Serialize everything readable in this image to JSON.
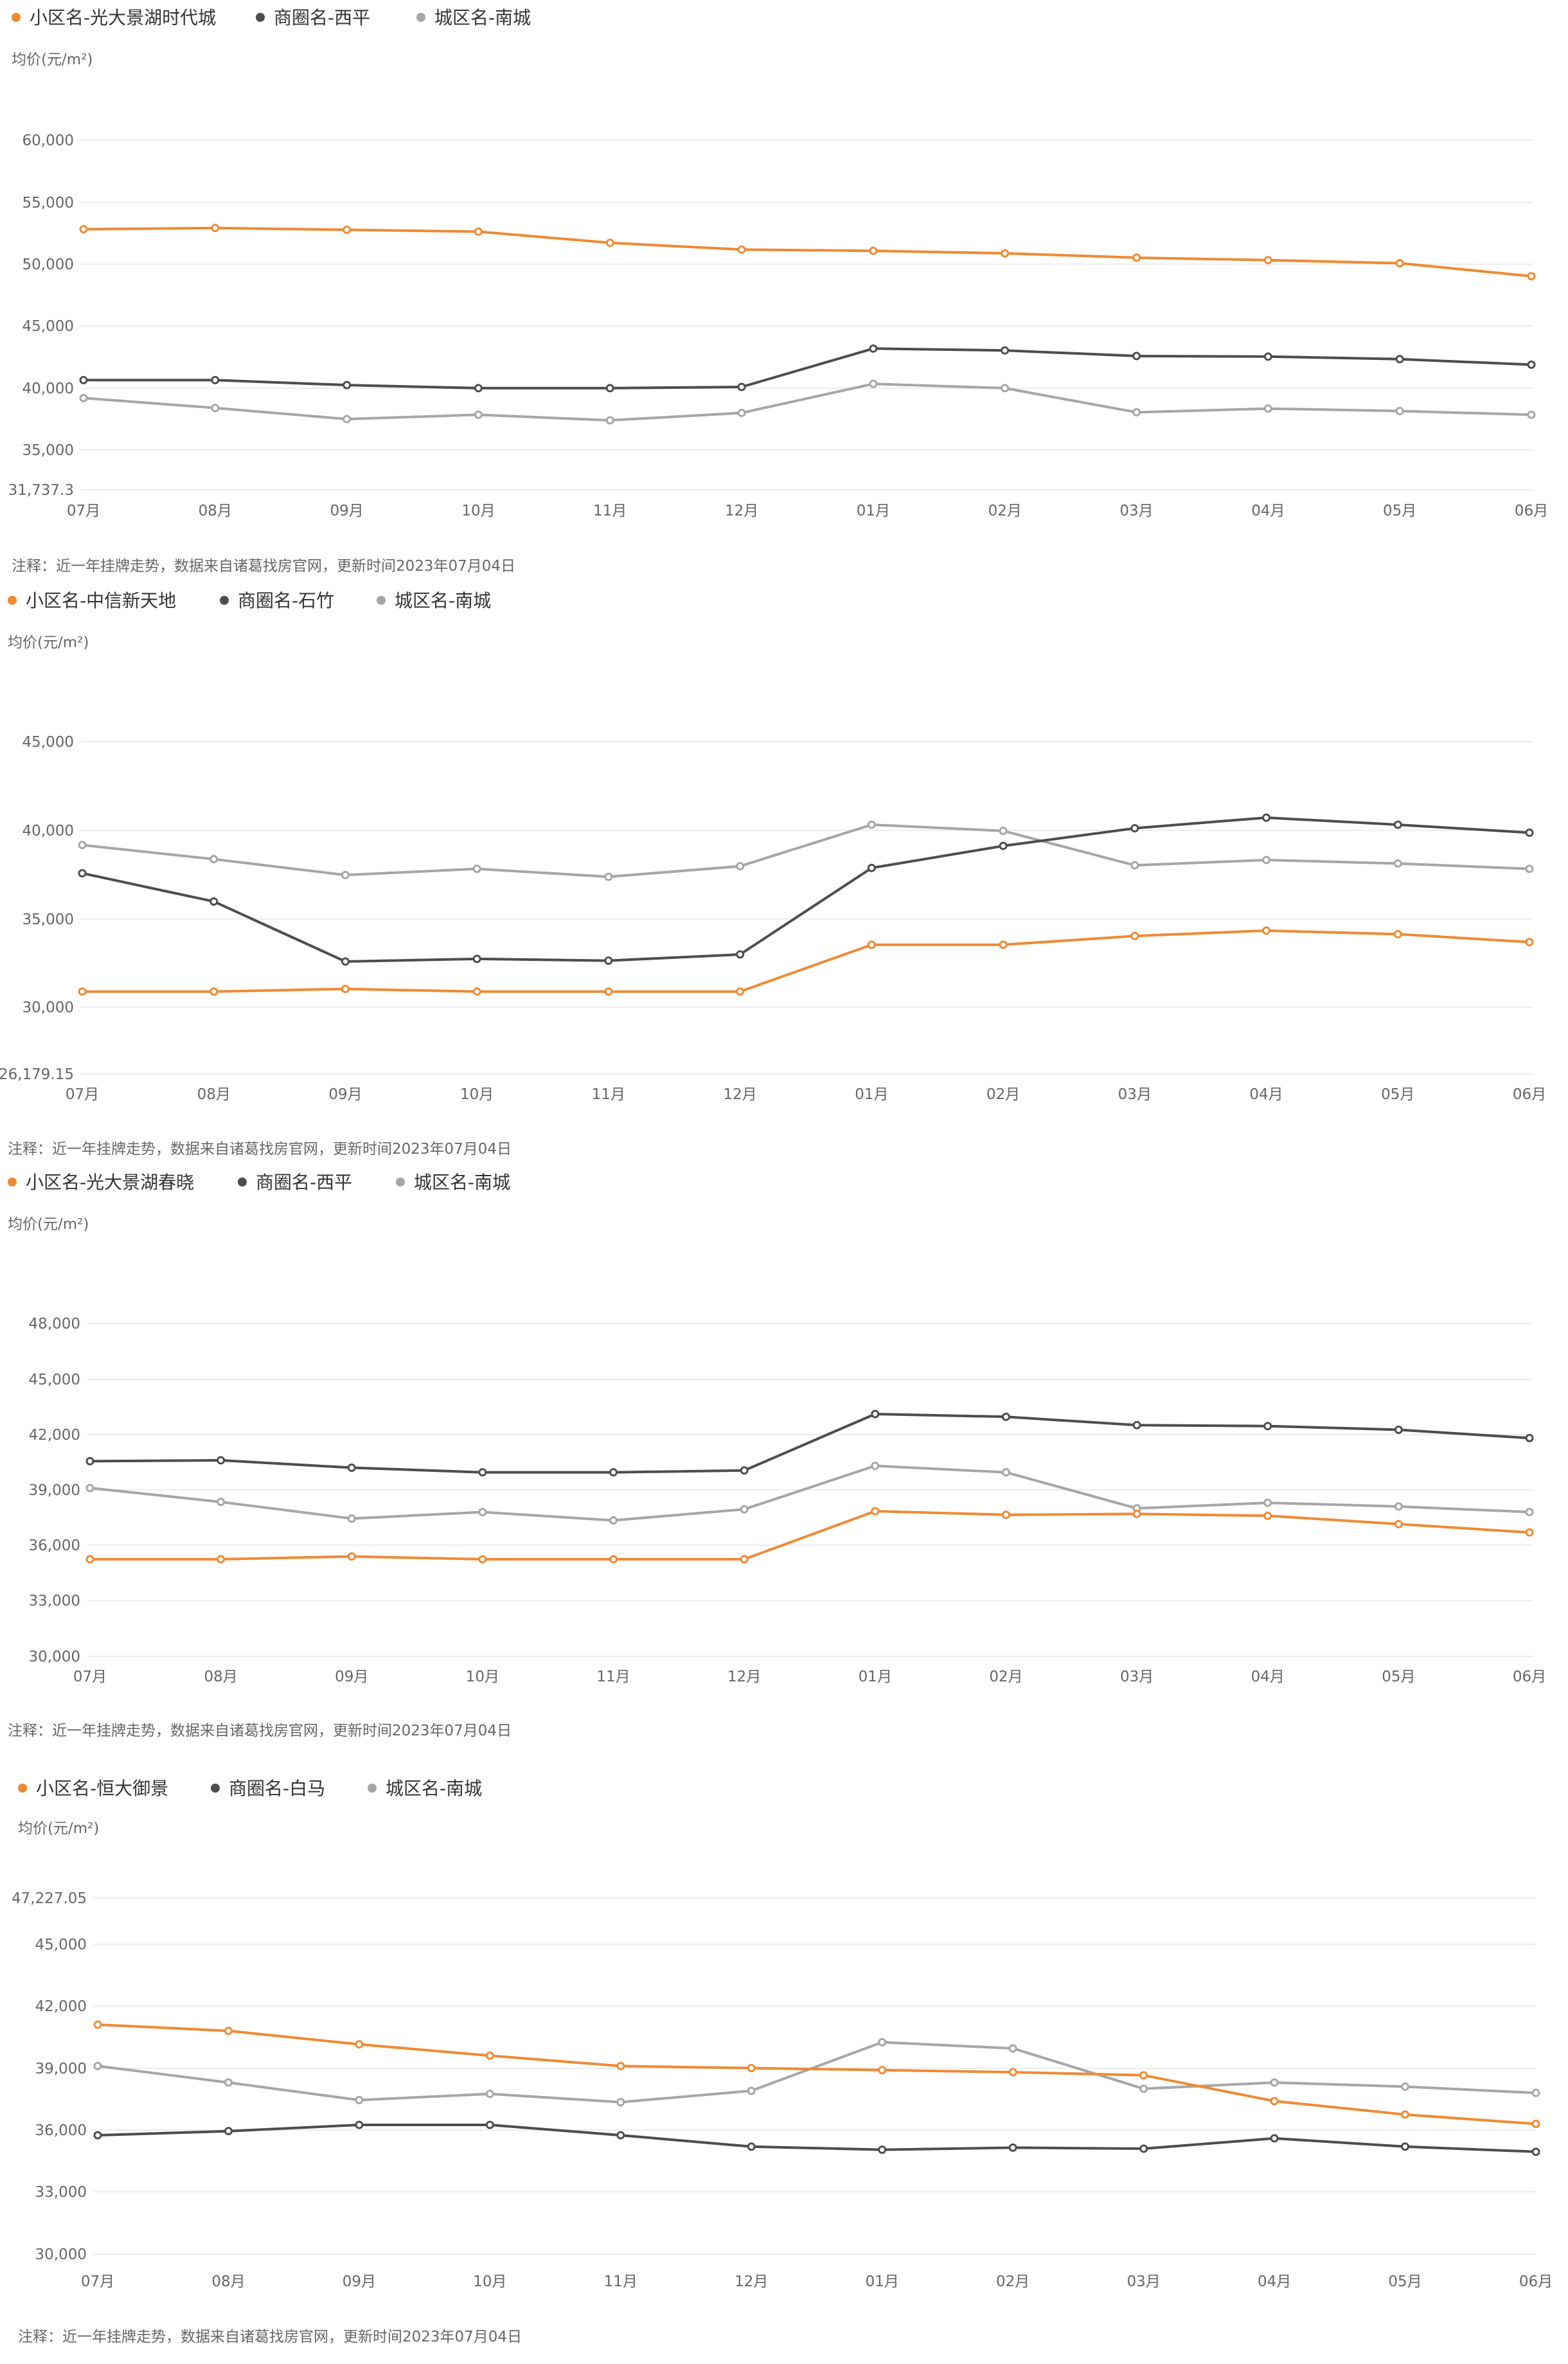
{
  "colors": {
    "community": "#ef8a33",
    "business": "#4d4d4d",
    "district": "#a6a6a6",
    "grid": "#ececec",
    "text": "#666666",
    "label": "#333333"
  },
  "chart_data": [
    {
      "type": "line",
      "legend": [
        "小区名-光大景湖时代城",
        "商圈名-西平",
        "城区名-南城"
      ],
      "ylabel": "均价(元/m²)",
      "categories": [
        "07月",
        "08月",
        "09月",
        "10月",
        "11月",
        "12月",
        "01月",
        "02月",
        "03月",
        "04月",
        "05月",
        "06月"
      ],
      "yticks": [
        "60,000",
        "55,000",
        "50,000",
        "45,000",
        "40,000",
        "35,000",
        "31,737.3"
      ],
      "ylim": [
        31737.3,
        60000
      ],
      "series": [
        {
          "name": "小区名-光大景湖时代城",
          "values": [
            52800,
            52900,
            52750,
            52600,
            51700,
            51150,
            51050,
            50850,
            50500,
            50300,
            50050,
            49000
          ]
        },
        {
          "name": "商圈名-西平",
          "values": [
            40600,
            40600,
            40200,
            39950,
            39950,
            40050,
            43150,
            43000,
            42550,
            42500,
            42300,
            41850
          ]
        },
        {
          "name": "城区名-南城",
          "values": [
            39150,
            38350,
            37450,
            37800,
            37350,
            37950,
            40300,
            39950,
            38000,
            38300,
            38100,
            37800
          ]
        }
      ],
      "note": "注释：近一年挂牌走势，数据来自诸葛找房官网，更新时间2023年07月04日"
    },
    {
      "type": "line",
      "legend": [
        "小区名-中信新天地",
        "商圈名-石竹",
        "城区名-南城"
      ],
      "ylabel": "均价(元/m²)",
      "categories": [
        "07月",
        "08月",
        "09月",
        "10月",
        "11月",
        "12月",
        "01月",
        "02月",
        "03月",
        "04月",
        "05月",
        "06月"
      ],
      "yticks": [
        "45,000",
        "40,000",
        "35,000",
        "30,000",
        "26,179.15"
      ],
      "ylim": [
        26179.15,
        45000
      ],
      "series": [
        {
          "name": "小区名-中信新天地",
          "values": [
            30850,
            30850,
            31000,
            30850,
            30850,
            30850,
            33500,
            33500,
            34000,
            34300,
            34100,
            33650
          ]
        },
        {
          "name": "商圈名-石竹",
          "values": [
            37550,
            35950,
            32550,
            32700,
            32600,
            32950,
            37850,
            39100,
            40100,
            40700,
            40300,
            39850
          ]
        },
        {
          "name": "城区名-南城",
          "values": [
            39150,
            38350,
            37450,
            37800,
            37350,
            37950,
            40300,
            39950,
            38000,
            38300,
            38100,
            37800
          ]
        }
      ],
      "note": "注释：近一年挂牌走势，数据来自诸葛找房官网，更新时间2023年07月04日"
    },
    {
      "type": "line",
      "legend": [
        "小区名-光大景湖春晓",
        "商圈名-西平",
        "城区名-南城"
      ],
      "ylabel": "均价(元/m²)",
      "categories": [
        "07月",
        "08月",
        "09月",
        "10月",
        "11月",
        "12月",
        "01月",
        "02月",
        "03月",
        "04月",
        "05月",
        "06月"
      ],
      "yticks": [
        "48,000",
        "45,000",
        "42,000",
        "39,000",
        "36,000",
        "33,000",
        "30,000"
      ],
      "ylim": [
        30000,
        48000
      ],
      "series": [
        {
          "name": "小区名-光大景湖春晓",
          "values": [
            35250,
            35250,
            35400,
            35250,
            35250,
            35250,
            37850,
            37650,
            37700,
            37600,
            37150,
            36700
          ]
        },
        {
          "name": "商圈名-西平",
          "values": [
            40550,
            40600,
            40200,
            39950,
            39950,
            40050,
            43100,
            42950,
            42500,
            42450,
            42250,
            41800
          ]
        },
        {
          "name": "城区名-南城",
          "values": [
            39100,
            38350,
            37450,
            37800,
            37350,
            37950,
            40300,
            39950,
            38000,
            38300,
            38100,
            37800
          ]
        }
      ],
      "note": "注释：近一年挂牌走势，数据来自诸葛找房官网，更新时间2023年07月04日"
    },
    {
      "type": "line",
      "legend": [
        "小区名-恒大御景",
        "商圈名-白马",
        "城区名-南城"
      ],
      "ylabel": "均价(元/m²)",
      "categories": [
        "07月",
        "08月",
        "09月",
        "10月",
        "11月",
        "12月",
        "01月",
        "02月",
        "03月",
        "04月",
        "05月",
        "06月"
      ],
      "yticks": [
        "47,227.05",
        "45,000",
        "42,000",
        "39,000",
        "36,000",
        "33,000",
        "30,000"
      ],
      "ylim": [
        30000,
        47227.05
      ],
      "series": [
        {
          "name": "小区名-恒大御景",
          "values": [
            41100,
            40800,
            40150,
            39600,
            39100,
            39000,
            38900,
            38800,
            38650,
            37400,
            36750,
            36300
          ]
        },
        {
          "name": "商圈名-白马",
          "values": [
            35750,
            35950,
            36250,
            36250,
            35750,
            35200,
            35050,
            35150,
            35100,
            35600,
            35200,
            34950
          ]
        },
        {
          "name": "城区名-南城",
          "values": [
            39100,
            38300,
            37450,
            37750,
            37350,
            37900,
            40250,
            39950,
            38000,
            38300,
            38100,
            37800
          ]
        }
      ],
      "note": "注释：近一年挂牌走势，数据来自诸葛找房官网，更新时间2023年07月04日"
    }
  ]
}
